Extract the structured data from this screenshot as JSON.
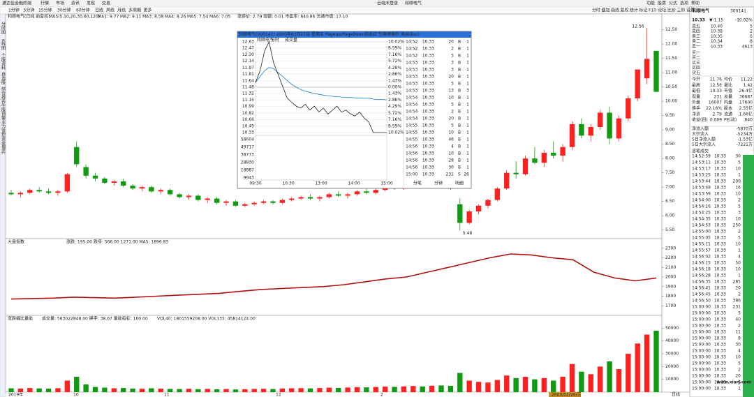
{
  "menu": {
    "app": "通达信金融终端",
    "items": [
      "行情",
      "市场",
      "资讯",
      "发现",
      "交易"
    ],
    "center": "云端未登录",
    "stock": "和顺电气",
    "right": [
      "功能",
      "股票",
      "公式",
      "选项",
      "帮助"
    ]
  },
  "toolbar": {
    "periods": [
      "1分钟",
      "5分钟",
      "15分钟",
      "30分钟",
      "60分钟",
      "日线",
      "周线",
      "月线",
      "多周期",
      "更多"
    ],
    "right": [
      "分时",
      "叠加",
      "画线",
      "复权",
      "统计",
      "标记",
      "F10",
      "论坛",
      "比价",
      "三阶",
      "设置"
    ]
  },
  "sidebar": [
    "分时图",
    "K线图",
    "个股资料",
    "自选股",
    "综合排名",
    "牛股预警",
    "主力监控",
    "资金博弈"
  ],
  "kline": {
    "title": "和顺电气(日线 前复权)",
    "indicator": "MA5(5,10,20,30,60,120)",
    "ma": [
      "MA1: 9.77",
      "MA2: 9.11",
      "MA3: 8.58",
      "MA4: 8.26",
      "MA5: 7.54",
      "MA6: 7.05"
    ],
    "ma_colors": [
      "#333333",
      "#e0a000",
      "#d000d0",
      "#009900",
      "#1070d0",
      "#00a0a0"
    ],
    "extra": "涨停价: 2.79  现额: 0.01  市盈率: 840.86  流通市值: 17.10",
    "ylim": [
      5.2,
      13.05
    ],
    "yticks": [
      {
        "value": 12.5,
        "label": "12.50"
      },
      {
        "value": 12,
        "label": "12.00"
      },
      {
        "value": 11.5,
        "label": "11.50"
      },
      {
        "value": 11,
        "label": "11.00"
      },
      {
        "value": 10.5,
        "label": "10.50"
      },
      {
        "value": 10,
        "label": "10.00"
      },
      {
        "value": 9.5,
        "label": "9.50"
      },
      {
        "value": 9,
        "label": "9.00"
      },
      {
        "value": 8.5,
        "label": "8.50"
      },
      {
        "value": 8,
        "label": "8.00"
      },
      {
        "value": 7.5,
        "label": "7.50"
      },
      {
        "value": 7,
        "label": "7.00"
      },
      {
        "value": 6.5,
        "label": "6.50"
      },
      {
        "value": 6,
        "label": "6.00"
      },
      {
        "value": 5.5,
        "label": "5.50"
      }
    ],
    "up_color": "#ff2020",
    "down_color": "#109a10",
    "candles": [
      [
        6.8,
        6.9,
        6.7,
        6.75
      ],
      [
        6.75,
        6.85,
        6.65,
        6.8
      ],
      [
        6.8,
        6.95,
        6.75,
        6.9
      ],
      [
        6.9,
        7.0,
        6.8,
        6.85
      ],
      [
        6.85,
        6.95,
        6.75,
        6.8
      ],
      [
        6.8,
        6.9,
        6.7,
        6.85
      ],
      [
        6.85,
        7.5,
        6.8,
        7.45
      ],
      [
        8.4,
        8.6,
        7.7,
        7.8
      ],
      [
        7.7,
        7.8,
        7.3,
        7.4
      ],
      [
        7.4,
        7.5,
        7.2,
        7.3
      ],
      [
        7.3,
        7.35,
        7.1,
        7.15
      ],
      [
        7.15,
        7.25,
        7.05,
        7.2
      ],
      [
        7.2,
        7.3,
        7.0,
        7.05
      ],
      [
        7.05,
        7.1,
        6.9,
        6.95
      ],
      [
        6.95,
        7.05,
        6.85,
        7.0
      ],
      [
        7.0,
        7.05,
        6.8,
        6.85
      ],
      [
        6.85,
        6.95,
        6.75,
        6.9
      ],
      [
        6.9,
        6.95,
        6.7,
        6.75
      ],
      [
        6.75,
        6.8,
        6.6,
        6.65
      ],
      [
        6.65,
        6.75,
        6.55,
        6.7
      ],
      [
        6.7,
        6.75,
        6.5,
        6.55
      ],
      [
        6.55,
        6.65,
        6.45,
        6.6
      ],
      [
        6.6,
        6.65,
        6.4,
        6.45
      ],
      [
        6.45,
        6.55,
        6.35,
        6.5
      ],
      [
        6.5,
        6.55,
        6.3,
        6.35
      ],
      [
        6.35,
        6.45,
        6.3,
        6.4
      ],
      [
        6.4,
        6.5,
        6.35,
        6.45
      ],
      [
        6.45,
        6.55,
        6.4,
        6.5
      ],
      [
        6.5,
        6.55,
        6.4,
        6.45
      ],
      [
        6.45,
        6.6,
        6.4,
        6.55
      ],
      [
        6.55,
        6.65,
        6.5,
        6.6
      ],
      [
        6.6,
        6.7,
        6.55,
        6.65
      ],
      [
        6.65,
        6.75,
        6.55,
        6.6
      ],
      [
        6.6,
        6.7,
        6.5,
        6.65
      ],
      [
        6.65,
        6.8,
        6.6,
        6.75
      ],
      [
        6.75,
        6.85,
        6.65,
        6.7
      ],
      [
        6.7,
        6.8,
        6.6,
        6.75
      ],
      [
        6.75,
        6.9,
        6.7,
        6.85
      ],
      [
        6.85,
        6.95,
        6.75,
        6.8
      ],
      [
        6.8,
        6.95,
        6.75,
        6.9
      ],
      [
        6.9,
        7.05,
        6.85,
        7.0
      ],
      [
        7.0,
        7.1,
        6.9,
        6.95
      ],
      [
        6.95,
        7.1,
        6.9,
        7.05
      ],
      [
        7.05,
        7.2,
        7.0,
        7.1
      ],
      [
        7.1,
        7.2,
        6.95,
        7.0
      ],
      [
        7.0,
        7.2,
        6.95,
        7.15
      ],
      [
        7.15,
        7.3,
        7.05,
        7.1
      ],
      [
        7.1,
        7.25,
        6.9,
        6.95
      ],
      [
        6.4,
        6.6,
        5.48,
        5.75
      ],
      [
        5.75,
        6.2,
        5.7,
        6.15
      ],
      [
        6.15,
        6.4,
        6.05,
        6.35
      ],
      [
        6.35,
        6.6,
        6.25,
        6.55
      ],
      [
        6.55,
        7.0,
        6.5,
        6.95
      ],
      [
        6.95,
        7.6,
        6.9,
        7.5
      ],
      [
        7.5,
        7.9,
        7.3,
        7.45
      ],
      [
        7.45,
        8.1,
        7.4,
        8.0
      ],
      [
        8.0,
        8.4,
        7.8,
        7.85
      ],
      [
        7.85,
        8.3,
        7.7,
        8.2
      ],
      [
        8.2,
        8.6,
        8.0,
        8.1
      ],
      [
        8.1,
        8.5,
        7.9,
        8.4
      ],
      [
        8.4,
        9.3,
        8.3,
        9.2
      ],
      [
        9.2,
        9.4,
        8.7,
        8.8
      ],
      [
        8.8,
        9.2,
        8.6,
        9.1
      ],
      [
        9.1,
        9.7,
        9.0,
        9.6
      ],
      [
        9.6,
        9.8,
        8.5,
        8.7
      ],
      [
        8.7,
        9.5,
        8.6,
        9.4
      ],
      [
        9.4,
        10.2,
        9.3,
        10.1
      ],
      [
        10.1,
        11.11,
        10.0,
        11.11
      ],
      [
        10.8,
        12.56,
        10.6,
        11.48
      ],
      [
        11.76,
        11.76,
        10.33,
        10.33
      ]
    ],
    "high_label": 12.56,
    "low_label": 5.48,
    "dates": [
      "2019年",
      "10",
      "11",
      "12",
      "2",
      "2020/02/26/三"
    ],
    "period_label": "日线"
  },
  "index_panel": {
    "title": "大盘指数",
    "info": "涨跌: 195.00  跌停: 566.00  1271.00  MA5: 1896.83",
    "color": "#b01010",
    "ylim": [
      1600,
      2400
    ],
    "yticks": [
      2300,
      2200,
      2100,
      2000,
      1900,
      1800,
      1700
    ],
    "values": [
      1770,
      1775,
      1780,
      1790,
      1785,
      1780,
      1790,
      1800,
      1810,
      1820,
      1830,
      1850,
      1870,
      1880,
      1890,
      1900,
      1920,
      1950,
      1980,
      2000,
      2050,
      2100,
      2150,
      2200,
      2240,
      2230,
      2200,
      2180,
      2050,
      1990,
      1960,
      1990
    ]
  },
  "volume_panel": {
    "title": "涨跌幅比量能",
    "info": "成交量: 563022848.00  换手: 38.67  量能指标: 100.00",
    "info2": "VOL40: 1801559208.00  VOL135: 45814124.00",
    "ylim": [
      0,
      60000
    ],
    "yticks": [
      50000,
      40000,
      30000,
      20000,
      10000
    ],
    "values": [
      3000,
      2800,
      3200,
      2900,
      2700,
      3100,
      9000,
      12000,
      6000,
      4000,
      3500,
      3000,
      3200,
      2800,
      2600,
      3000,
      2700,
      2500,
      2400,
      2600,
      2300,
      2500,
      2200,
      2400,
      2100,
      2300,
      2500,
      2600,
      2400,
      2800,
      3000,
      3100,
      2900,
      3200,
      3500,
      3300,
      3600,
      3900,
      3700,
      4000,
      4300,
      4100,
      4500,
      4800,
      4400,
      5000,
      5200,
      4900,
      15000,
      9000,
      8000,
      7500,
      9500,
      13000,
      11000,
      12000,
      10000,
      11000,
      9000,
      12000,
      22000,
      16000,
      14000,
      20000,
      24000,
      18000,
      30000,
      38000,
      45000,
      48000
    ]
  },
  "popup": {
    "title": "和顺电气(300141) 2020年03月27日 星期五 PageUp/PageDown前后日 空格键操作 退出(Esc)",
    "tabs": [
      "和顺电气",
      "分时",
      "成交量"
    ],
    "ylim": [
      10.33,
      12.63
    ],
    "yticks": [
      12.63,
      12.47,
      {
        "value": 12.3,
        "label": "12.30"
      },
      12.14,
      11.97,
      11.81,
      11.64,
      11.48,
      11.32,
      11.15,
      10.99,
      10.82,
      10.66,
      10.49,
      10.33
    ],
    "pct_labels": [
      "10.02%",
      "8.59%",
      "7.16%",
      "5.72%",
      "4.29%",
      "2.86%",
      "1.43%",
      "0.00%",
      "1.43%",
      "2.86%",
      "4.29%",
      "5.72%",
      "7.16%",
      "8.59%",
      "10.02%"
    ],
    "vol_labels": [
      58604,
      49717,
      38773,
      28830,
      18887,
      9943
    ],
    "times": [
      "09:30",
      "10:30",
      "13:00",
      "14:00",
      "15:00"
    ],
    "price_color": "#222222",
    "avg_color": "#1080d0",
    "price": [
      11.6,
      11.9,
      12.4,
      12.63,
      12.1,
      11.8,
      11.5,
      11.2,
      11.1,
      11.0,
      10.95,
      11.05,
      10.9,
      11.0,
      10.85,
      10.95,
      10.8,
      10.9,
      11.0,
      10.85,
      10.9,
      10.8,
      10.75,
      10.85,
      10.7,
      10.6,
      10.33,
      10.33,
      10.33,
      10.33
    ],
    "avg": [
      11.6,
      11.75,
      11.9,
      11.98,
      11.95,
      11.85,
      11.75,
      11.65,
      11.55,
      11.48,
      11.42,
      11.38,
      11.35,
      11.32,
      11.3,
      11.28,
      11.26,
      11.25,
      11.24,
      11.23,
      11.22,
      11.22,
      11.21,
      11.21,
      11.2,
      11.2,
      11.18,
      11.17,
      11.17,
      11.16
    ],
    "rows": [
      [
        "14:52",
        "10.33",
        "20",
        "B",
        "1"
      ],
      [
        "14:52",
        "10.33",
        "2",
        "B",
        "1"
      ],
      [
        "14:52",
        "10.33",
        "5",
        "B",
        "1"
      ],
      [
        "14:53",
        "10.33",
        "3",
        "B",
        "1"
      ],
      [
        "14:53",
        "10.33",
        "3",
        "B",
        "1"
      ],
      [
        "14:53",
        "10.33",
        "20",
        "B",
        "1"
      ],
      [
        "14:53",
        "10.33",
        "5",
        "B",
        "1"
      ],
      [
        "14:53",
        "10.33",
        "13",
        "B",
        "3"
      ],
      [
        "14:54",
        "10.33",
        "10",
        "B",
        "1"
      ],
      [
        "14:54",
        "10.33",
        "5",
        "B",
        "1"
      ],
      [
        "14:54",
        "10.33",
        "2",
        "B",
        "1"
      ],
      [
        "14:54",
        "10.33",
        "20",
        "B",
        "1"
      ],
      [
        "14:55",
        "10.33",
        "5",
        "B",
        "1"
      ],
      [
        "14:55",
        "10.33",
        "10",
        "B",
        "1"
      ],
      [
        "14:55",
        "10.33",
        "46",
        "B",
        "1"
      ],
      [
        "14:56",
        "10.33",
        "4",
        "B",
        "1"
      ],
      [
        "14:56",
        "10.33",
        "10",
        "B",
        "1"
      ],
      [
        "14:56",
        "10.33",
        "28",
        "B",
        "1"
      ],
      [
        "14:56",
        "10.33",
        "30",
        "B",
        "1"
      ],
      [
        "15:00",
        "10.33",
        "231",
        "S",
        "26"
      ]
    ],
    "bottom_tabs": [
      "分笔",
      "分钟",
      "明细"
    ]
  },
  "quote": {
    "name": "和顺电气",
    "code": "300141",
    "price": "10.33",
    "change": "▼-1.15",
    "pct": "-10.02%",
    "book": [
      [
        "卖五",
        "10.40",
        "5"
      ],
      [
        "卖四",
        "10.38",
        "2"
      ],
      [
        "卖三",
        "10.35",
        "6"
      ],
      [
        "卖二",
        "10.34",
        "8"
      ],
      [
        "卖一",
        "10.33",
        "4613"
      ],
      [
        "买一"
      ],
      [
        "买二"
      ],
      [
        "买三"
      ],
      [
        "买四"
      ],
      [
        "买五"
      ]
    ],
    "stats": [
      [
        "今开",
        "11.76",
        "均价",
        "11.22"
      ],
      [
        "最高",
        "12.56",
        "量比",
        "1.42"
      ],
      [
        "最低",
        "10.33",
        "市值",
        "26.4亿"
      ],
      [
        "现量",
        "231",
        "总量",
        "36687"
      ],
      [
        "外盘",
        "16007",
        "内盘",
        "17600"
      ],
      [
        "换手",
        "22.16%",
        "股本",
        "2.55亿"
      ],
      [
        "净资",
        "2.79",
        "流通",
        "1.66亿"
      ],
      [
        "收益(四)",
        "0.009",
        "PE(动)",
        "840"
      ]
    ],
    "flows": [
      [
        "净流入额",
        "-5870万"
      ],
      [
        "大宗流入",
        "-5234万"
      ],
      [
        "5日净流入额",
        "-1.53亿"
      ],
      [
        "5日大宗流入",
        "-7221万"
      ]
    ],
    "ticks_title": "逐笔成交",
    "ticks": [
      [
        "14:52:59",
        "10.33",
        "30"
      ],
      [
        "14:53:11",
        "10.33",
        "5"
      ],
      [
        "14:53:17",
        "10.33",
        "10"
      ],
      [
        "14:53:25",
        "10.33",
        "1"
      ],
      [
        "14:53:44",
        "10.33",
        "200"
      ],
      [
        "14:53:49",
        "10.33",
        "16"
      ],
      [
        "14:53:59",
        "10.33",
        "10"
      ],
      [
        "14:54:00",
        "10.33",
        "2"
      ],
      [
        "14:54:16",
        "10.33",
        "5"
      ],
      [
        "14:54:25",
        "10.33",
        "3"
      ],
      [
        "14:54:35",
        "10.33",
        "10"
      ],
      [
        "14:54:53",
        "10.33",
        "250"
      ],
      [
        "14:55:00",
        "10.33",
        "2"
      ],
      [
        "14:55:05",
        "10.33",
        "5"
      ],
      [
        "14:55:11",
        "10.33",
        "10"
      ],
      [
        "14:55:57",
        "10.33",
        "1"
      ],
      [
        "14:56:02",
        "10.33",
        "4"
      ],
      [
        "14:56:15",
        "10.33",
        "50"
      ],
      [
        "14:56:18",
        "10.33",
        "10"
      ],
      [
        "14:56:28",
        "10.33",
        "1"
      ],
      [
        "14:56:35",
        "10.33",
        "285"
      ],
      [
        "14:56:41",
        "10.33",
        "20"
      ],
      [
        "14:56:45",
        "10.33",
        "2"
      ],
      [
        "14:56:50",
        "10.33",
        "386"
      ],
      [
        "15:00:00",
        "10.33",
        "231"
      ],
      [
        "15:00:00",
        "10.33",
        "5"
      ],
      [
        "15:00:00",
        "10.33",
        "40"
      ],
      [
        "15:00:00",
        "10.33",
        "2"
      ],
      [
        "15:00:00",
        "10.33",
        "11"
      ],
      [
        "15:00:00",
        "10.33",
        "8"
      ],
      [
        "15:00:00",
        "10.33",
        "30"
      ],
      [
        "15:00:00",
        "10.33",
        "4"
      ],
      [
        "15:00:00",
        "10.33",
        "10"
      ],
      [
        "15:00:00",
        "10.33",
        "5"
      ],
      [
        "15:00:00",
        "10.33",
        "2"
      ],
      [
        "15:00:00",
        "10.33",
        "20"
      ],
      [
        "15:00:00",
        "10.33",
        "6"
      ],
      [
        "15:00:00",
        "10.33",
        "1"
      ]
    ]
  },
  "watermark": "www.xiarj.com"
}
